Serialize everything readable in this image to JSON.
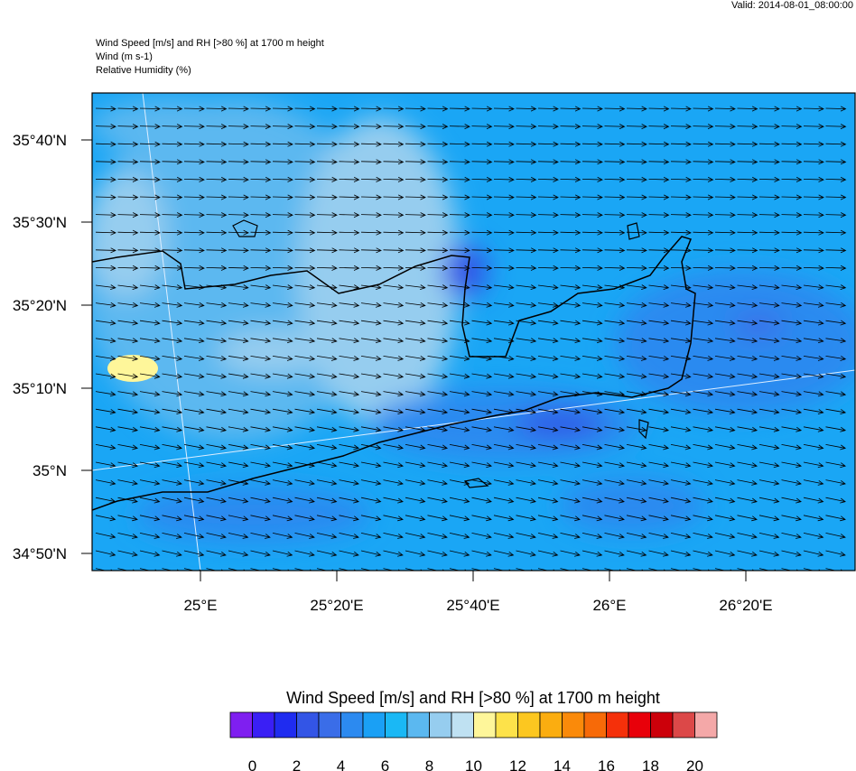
{
  "header": {
    "valid": "Valid: 2014-08-01_08:00:00",
    "lines": [
      "Wind Speed [m/s] and RH [>80 %] at 1700 m height",
      "Wind   (m s-1)",
      "Relative Humidity   (%)"
    ]
  },
  "map": {
    "lat_labels": [
      "35°40'N",
      "35°30'N",
      "35°20'N",
      "35°10'N",
      "35°N",
      "34°50'N"
    ],
    "lon_labels": [
      "25°E",
      "25°20'E",
      "25°40'E",
      "26°E",
      "26°20'E"
    ]
  },
  "colorbar": {
    "title": "Wind Speed [m/s] and RH [>80 %] at 1700 m height",
    "colors": [
      "#7f1ff0",
      "#3a1ff5",
      "#1f2cf0",
      "#3355e6",
      "#3a6de8",
      "#2c8af0",
      "#1aa0f5",
      "#1ab8f5",
      "#5bb8f0",
      "#96cdef",
      "#bfe1f2",
      "#fef69a",
      "#fde24a",
      "#fcc720",
      "#fbad10",
      "#fa8a0a",
      "#f76a08",
      "#f5300a",
      "#e8000a",
      "#cc000a",
      "#dc4848",
      "#f4a8a8"
    ],
    "labels": [
      0,
      2,
      4,
      6,
      8,
      10,
      12,
      14,
      16,
      18,
      20
    ]
  }
}
